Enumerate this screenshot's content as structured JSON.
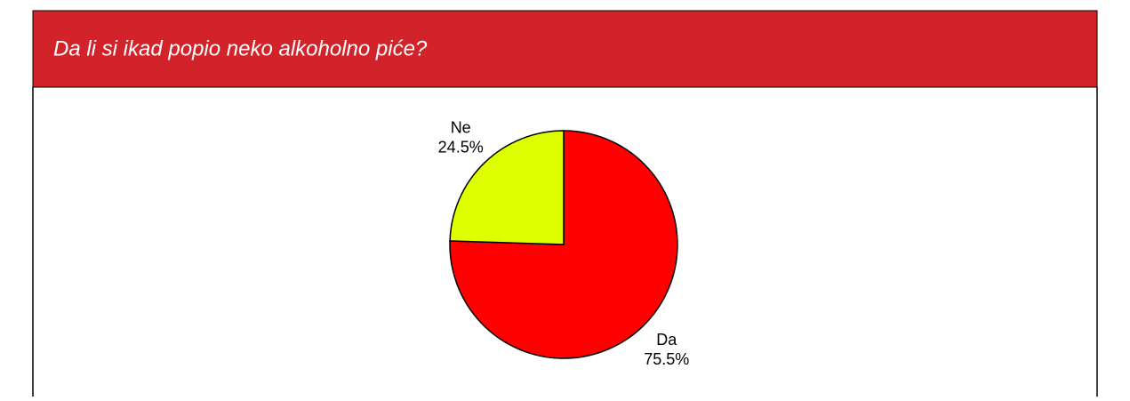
{
  "chart_data": {
    "type": "pie",
    "title": "Da li si ikad popio neko alkoholno piće?",
    "categories": [
      "Da",
      "Ne"
    ],
    "values": [
      75.5,
      24.5
    ],
    "value_labels": [
      "75.5%",
      "24.5%"
    ],
    "colors": [
      "#ff0000",
      "#ddff00"
    ]
  }
}
